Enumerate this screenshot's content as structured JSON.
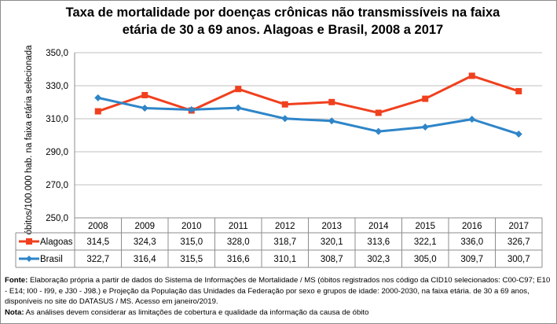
{
  "chart_data": {
    "type": "line",
    "title_line1": "Taxa de mortalidade por doenças crônicas não transmissíveis na faixa",
    "title_line2": "etária de 30 a  69 anos. Alagoas e Brasil, 2008 a 2017",
    "ylabel": "óbitos/100.000 hab. na faixa etária selecionada",
    "ylim": [
      250,
      350
    ],
    "yticks": [
      "250,0",
      "270,0",
      "290,0",
      "310,0",
      "330,0",
      "350,0"
    ],
    "ytick_values": [
      250,
      270,
      290,
      310,
      330,
      350
    ],
    "grid": true,
    "legend": "data-table",
    "categories": [
      "2008",
      "2009",
      "2010",
      "2011",
      "2012",
      "2013",
      "2014",
      "2015",
      "2016",
      "2017"
    ],
    "series": [
      {
        "name": "Alagoas",
        "color": "#f0401e",
        "marker": "square",
        "values": [
          314.5,
          324.3,
          315.0,
          328.0,
          318.7,
          320.1,
          313.6,
          322.1,
          336.0,
          326.7
        ],
        "labels": [
          "314,5",
          "324,3",
          "315,0",
          "328,0",
          "318,7",
          "320,1",
          "313,6",
          "322,1",
          "336,0",
          "326,7"
        ]
      },
      {
        "name": "Brasil",
        "color": "#2e85c8",
        "marker": "diamond",
        "values": [
          322.7,
          316.4,
          315.5,
          316.6,
          310.1,
          308.7,
          302.3,
          305.0,
          309.7,
          300.7
        ],
        "labels": [
          "322,7",
          "316,4",
          "315,5",
          "316,6",
          "310,1",
          "308,7",
          "302,3",
          "305,0",
          "309,7",
          "300,7"
        ]
      }
    ]
  },
  "notes": {
    "source_label": "Fonte:",
    "source_text": " Elaboração própria a partir de dados do Sistema de Informações de Mortalidade / MS (óbitos registrados nos código da CID10 selecionados: C00-C97; E10 - E14; I00 - I99,  e J30 - J98.) e Projeção da População das Unidades da Federação por sexo e grupos de idade: 2000-2030, na faixa etária. de 30 a 69 anos, disponíveis no site do DATASUS / MS.  Acesso em janeiro/2019.",
    "note_label": "Nota:",
    "note_text": "  As análises devem considerar as limitações de cobertura e qualidade da informação da causa de óbito"
  }
}
